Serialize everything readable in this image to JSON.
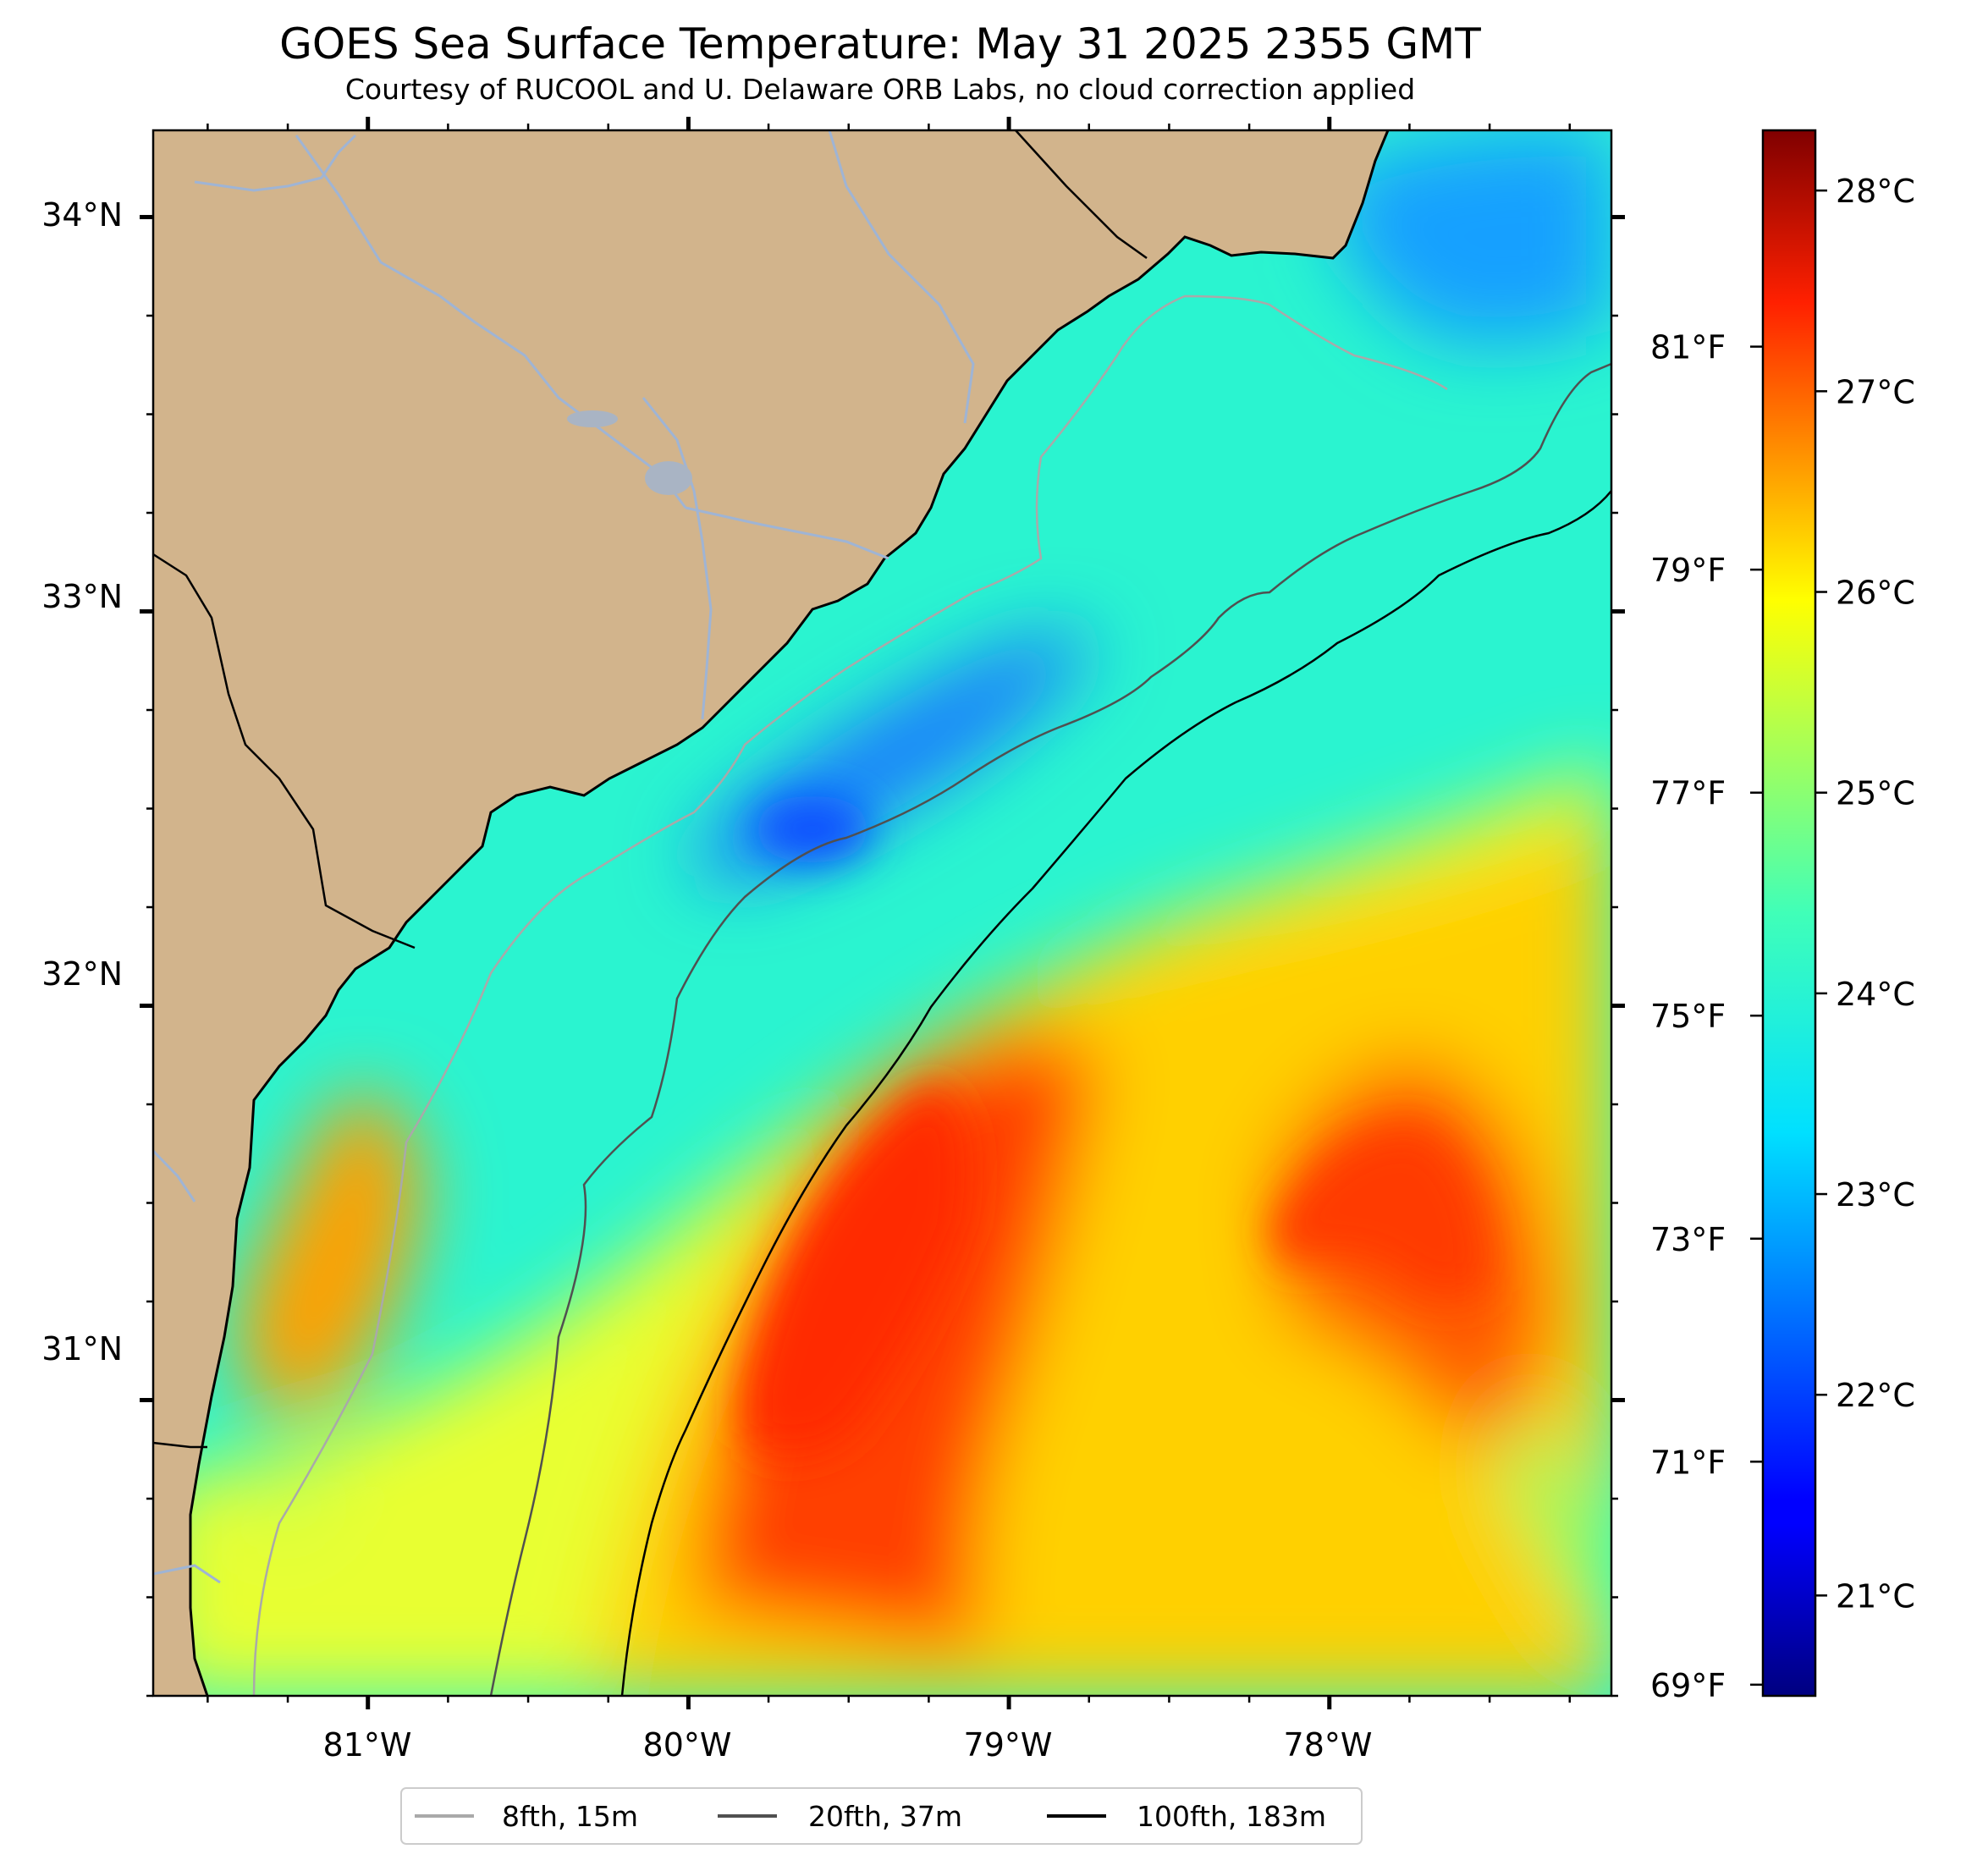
{
  "title": "GOES Sea Surface Temperature: May 31 2025 2355 GMT",
  "subtitle": "Courtesy of RUCOOL and U. Delaware ORB Labs, no cloud correction applied",
  "map": {
    "lon_range": [
      -81.67,
      -77.12
    ],
    "lat_range": [
      30.25,
      34.22
    ],
    "lon_ticks": [
      {
        "lon": -81,
        "label": "81°W"
      },
      {
        "lon": -80,
        "label": "80°W"
      },
      {
        "lon": -79,
        "label": "79°W"
      },
      {
        "lon": -78,
        "label": "78°W"
      }
    ],
    "lat_ticks": [
      {
        "lat": 34,
        "label": "34°N"
      },
      {
        "lat": 33,
        "label": "33°N"
      },
      {
        "lat": 32,
        "label": "32°N"
      },
      {
        "lat": 31,
        "label": "31°N"
      }
    ],
    "colors": {
      "land": "#d2b48c",
      "river": "#9fb4d4",
      "coast": "#000000"
    }
  },
  "colorbar": {
    "colormap": "jet",
    "range_c": [
      20.5,
      28.3
    ],
    "celsius_ticks": [
      {
        "value": 28,
        "label": "28°C"
      },
      {
        "value": 27,
        "label": "27°C"
      },
      {
        "value": 26,
        "label": "26°C"
      },
      {
        "value": 25,
        "label": "25°C"
      },
      {
        "value": 24,
        "label": "24°C"
      },
      {
        "value": 23,
        "label": "23°C"
      },
      {
        "value": 22,
        "label": "22°C"
      },
      {
        "value": 21,
        "label": "21°C"
      }
    ],
    "fahrenheit_ticks": [
      {
        "value": 81,
        "label": "81°F"
      },
      {
        "value": 79,
        "label": "79°F"
      },
      {
        "value": 77,
        "label": "77°F"
      },
      {
        "value": 75,
        "label": "75°F"
      },
      {
        "value": 73,
        "label": "73°F"
      },
      {
        "value": 71,
        "label": "71°F"
      },
      {
        "value": 69,
        "label": "69°F"
      }
    ]
  },
  "legend": [
    {
      "label": "8fth, 15m",
      "color": "#a9a9a9"
    },
    {
      "label": "20fth, 37m",
      "color": "#505050"
    },
    {
      "label": "100fth, 183m",
      "color": "#000000"
    }
  ]
}
